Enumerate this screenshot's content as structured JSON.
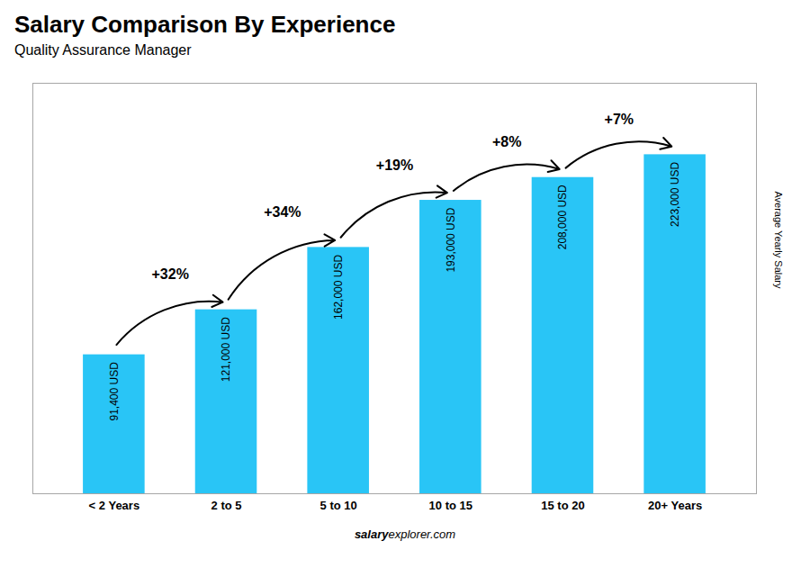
{
  "chart_data": {
    "type": "bar",
    "title": "Salary Comparison By Experience",
    "subtitle": "Quality Assurance Manager",
    "ylabel": "Average Yearly Salary",
    "categories": [
      "< 2 Years",
      "2 to 5",
      "5 to 10",
      "10 to 15",
      "15 to 20",
      "20+ Years"
    ],
    "values": [
      91400,
      121000,
      162000,
      193000,
      208000,
      223000
    ],
    "value_labels": [
      "91,400 USD",
      "121,000 USD",
      "162,000 USD",
      "193,000 USD",
      "208,000 USD",
      "223,000 USD"
    ],
    "data_labels": true,
    "color": "#29c5f6",
    "ylim": [
      0,
      270000
    ],
    "tick_labels": "x",
    "annotations": [
      "+32%",
      "+34%",
      "+19%",
      "+8%",
      "+7%"
    ],
    "source": [
      "salary",
      "explorer.com"
    ]
  }
}
